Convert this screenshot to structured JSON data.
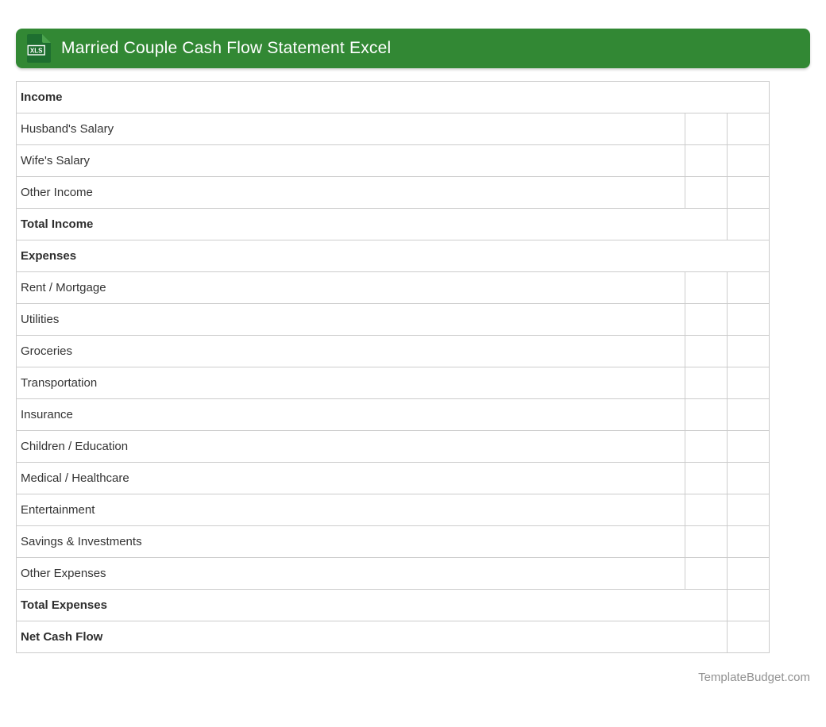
{
  "header": {
    "title": "Married Couple Cash Flow Statement Excel",
    "icon_label": "XLS",
    "banner_color": "#328834",
    "icon_color": "#1e6f30",
    "icon_fold_color": "#4aa34d"
  },
  "table": {
    "border_color": "#cccccc",
    "rows": [
      {
        "label": "Income",
        "type": "section"
      },
      {
        "label": "Husband's Salary",
        "type": "item"
      },
      {
        "label": "Wife's Salary",
        "type": "item"
      },
      {
        "label": "Other Income",
        "type": "item"
      },
      {
        "label": "Total Income",
        "type": "total"
      },
      {
        "label": "Expenses",
        "type": "section"
      },
      {
        "label": "Rent / Mortgage",
        "type": "item"
      },
      {
        "label": "Utilities",
        "type": "item"
      },
      {
        "label": "Groceries",
        "type": "item"
      },
      {
        "label": "Transportation",
        "type": "item"
      },
      {
        "label": "Insurance",
        "type": "item"
      },
      {
        "label": "Children / Education",
        "type": "item"
      },
      {
        "label": "Medical / Healthcare",
        "type": "item"
      },
      {
        "label": "Entertainment",
        "type": "item"
      },
      {
        "label": "Savings & Investments",
        "type": "item"
      },
      {
        "label": "Other Expenses",
        "type": "item"
      },
      {
        "label": "Total Expenses",
        "type": "total"
      },
      {
        "label": "Net Cash Flow",
        "type": "total"
      }
    ],
    "amount_cell_value": ""
  },
  "footer": {
    "credit": "TemplateBudget.com"
  }
}
